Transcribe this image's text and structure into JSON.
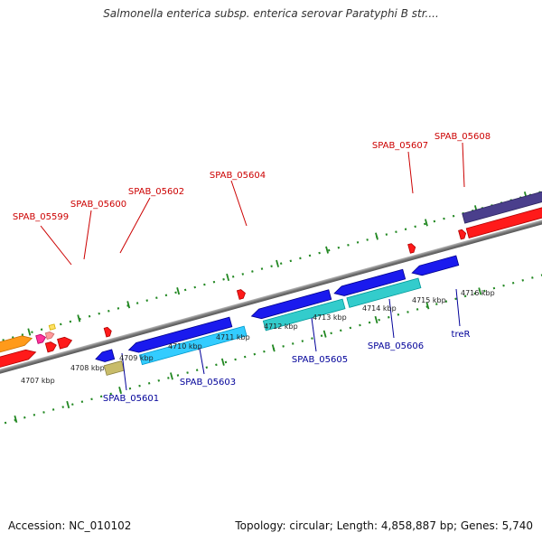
{
  "title": "Salmonella enterica subsp. enterica serovar Paratyphi B str....",
  "footer": {
    "accession": "Accession: NC_010102",
    "summary": "Topology: circular; Length: 4,858,887 bp; Genes: 5,740"
  },
  "colors": {
    "top_label": "#cc0000",
    "bottom_label": "#000099",
    "backbone": "#888888",
    "ticks": "#228822"
  },
  "scale_labels": [
    "4707 kbp",
    "4708 kbp",
    "4709 kbp",
    "4710 kbp",
    "4711 kbp",
    "4712 kbp",
    "4713 kbp",
    "4714 kbp",
    "4715 kbp",
    "4716 kbp"
  ],
  "top_gene_labels": [
    "SPAB_05599",
    "SPAB_05600",
    "SPAB_05602",
    "SPAB_05604",
    "SPAB_05607",
    "SPAB_05608"
  ],
  "bottom_gene_labels": [
    "SPAB_05601",
    "SPAB_05603",
    "SPAB_05605",
    "SPAB_05606",
    "treR"
  ]
}
